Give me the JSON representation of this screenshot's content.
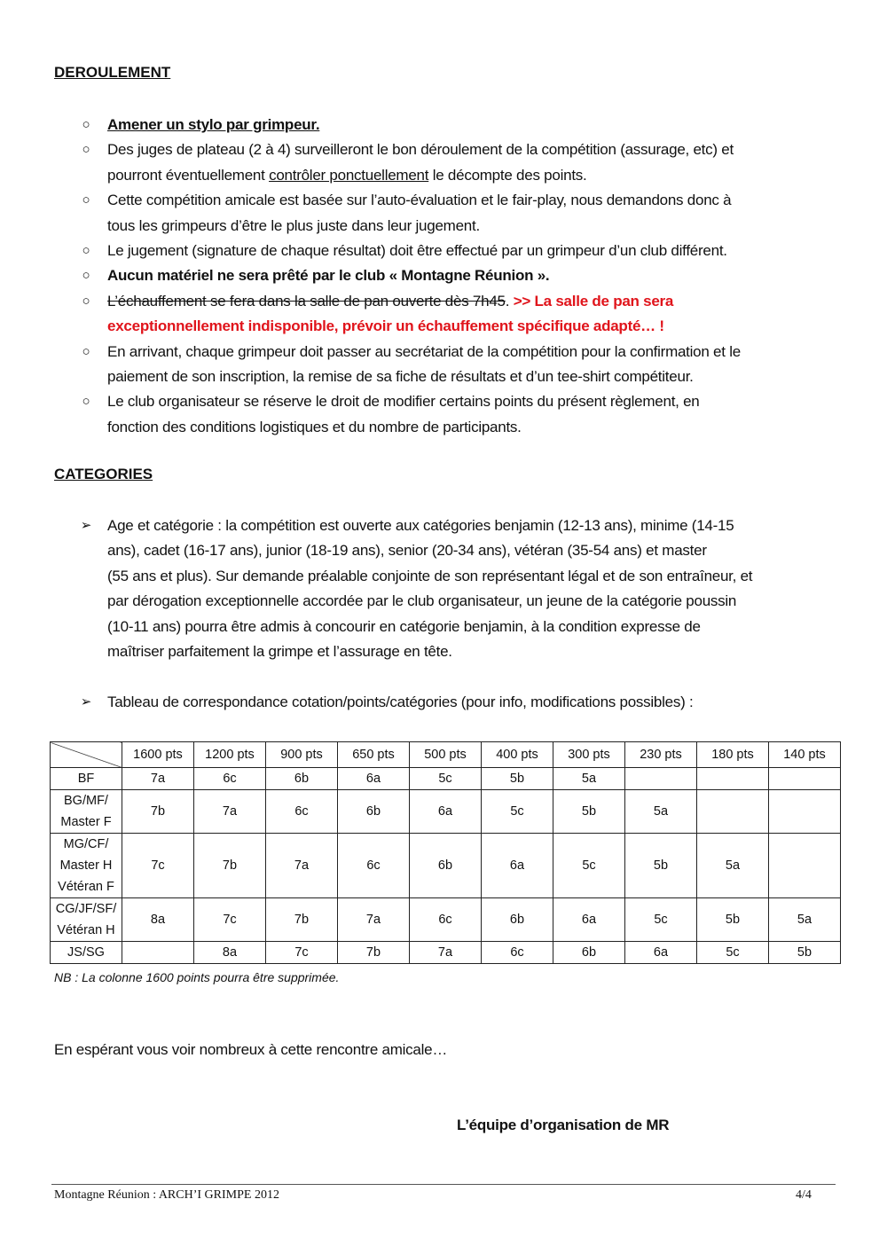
{
  "deroulement": {
    "title": "DEROULEMENT",
    "items": [
      {
        "lines": [
          [
            {
              "text": "Amener un stylo par grimpeur.",
              "fmt": "b u"
            }
          ]
        ]
      },
      {
        "lines": [
          [
            {
              "text": "Des juges de plateau (2 à 4) surveilleront le bon déroulement de la compétition (assurage, etc) et",
              "fmt": ""
            }
          ],
          [
            {
              "text": "pourront éventuellement ",
              "fmt": ""
            },
            {
              "text": "contrôler ponctuellement",
              "fmt": "u"
            },
            {
              "text": " le décompte des points.",
              "fmt": ""
            }
          ]
        ]
      },
      {
        "lines": [
          [
            {
              "text": "Cette compétition amicale est basée sur l’auto-évaluation et le fair-play, nous demandons donc à",
              "fmt": ""
            }
          ],
          [
            {
              "text": "tous les grimpeurs d’être le plus juste dans leur jugement.",
              "fmt": ""
            }
          ]
        ]
      },
      {
        "lines": [
          [
            {
              "text": "Le jugement (signature de chaque résultat) doit être effectué par un grimpeur d’un club différent.",
              "fmt": ""
            }
          ]
        ]
      },
      {
        "lines": [
          [
            {
              "text": "Aucun matériel ne sera prêté par le club « Montagne Réunion ».",
              "fmt": "b"
            }
          ]
        ]
      },
      {
        "lines": [
          [
            {
              "text": "L’échauffement se fera dans la salle de pan ouverte dès 7h45",
              "fmt": "s"
            },
            {
              "text": ". ",
              "fmt": ""
            },
            {
              "text": ">> La salle de pan sera",
              "fmt": "r"
            }
          ],
          [
            {
              "text": "exceptionnellement indisponible, prévoir un échauffement spécifique adapté… !",
              "fmt": "r"
            }
          ]
        ]
      },
      {
        "lines": [
          [
            {
              "text": "En arrivant, chaque grimpeur doit passer au secrétariat de la compétition pour la confirmation et le",
              "fmt": ""
            }
          ],
          [
            {
              "text": "paiement de son inscription, la remise de sa fiche de résultats et d’un tee-shirt compétiteur.",
              "fmt": ""
            }
          ]
        ]
      },
      {
        "lines": [
          [
            {
              "text": "Le club organisateur se réserve le droit de modifier certains points du présent règlement, en",
              "fmt": ""
            }
          ],
          [
            {
              "text": "fonction des conditions logistiques et du nombre de participants.",
              "fmt": ""
            }
          ]
        ]
      }
    ]
  },
  "categories": {
    "title": "CATEGORIES",
    "items": [
      {
        "lines": [
          [
            {
              "text": "Age et catégorie : la compétition est ouverte aux catégories benjamin (12-13 ans), minime (14-15",
              "fmt": ""
            }
          ],
          [
            {
              "text": "ans), cadet (16-17 ans), junior (18-19 ans), senior (20-34 ans), vétéran (35-54 ans) et master",
              "fmt": ""
            }
          ],
          [
            {
              "text": "(55 ans et plus). Sur demande préalable conjointe de son représentant légal et de son entraîneur, et",
              "fmt": ""
            }
          ],
          [
            {
              "text": "par dérogation exceptionnelle accordée par le club organisateur, un jeune de la catégorie poussin",
              "fmt": ""
            }
          ],
          [
            {
              "text": "(10-11 ans) pourra être admis à concourir en catégorie benjamin, à la condition expresse de",
              "fmt": ""
            }
          ],
          [
            {
              "text": "maîtriser parfaitement la grimpe et l’assurage en tête.",
              "fmt": ""
            }
          ]
        ]
      },
      {
        "lines": [
          [
            {
              "text": "Tableau de correspondance cotation/points/catégories (pour info, modifications possibles) :",
              "fmt": ""
            }
          ]
        ]
      }
    ]
  },
  "table": {
    "headers": [
      "1600 pts",
      "1200 pts",
      "900 pts",
      "650 pts",
      "500 pts",
      "400 pts",
      "300 pts",
      "230 pts",
      "180 pts",
      "140 pts"
    ],
    "rows": [
      {
        "label": [
          "BF"
        ],
        "cells": [
          "7a",
          "6c",
          "6b",
          "6a",
          "5c",
          "5b",
          "5a",
          "",
          "",
          ""
        ]
      },
      {
        "label": [
          "BG/MF/",
          "Master F"
        ],
        "cells": [
          "7b",
          "7a",
          "6c",
          "6b",
          "6a",
          "5c",
          "5b",
          "5a",
          "",
          ""
        ]
      },
      {
        "label": [
          "MG/CF/",
          "Master H",
          "Vétéran F"
        ],
        "cells": [
          "7c",
          "7b",
          "7a",
          "6c",
          "6b",
          "6a",
          "5c",
          "5b",
          "5a",
          ""
        ]
      },
      {
        "label": [
          "CG/JF/SF/",
          "Vétéran H"
        ],
        "cells": [
          "8a",
          "7c",
          "7b",
          "7a",
          "6c",
          "6b",
          "6a",
          "5c",
          "5b",
          "5a"
        ]
      },
      {
        "label": [
          "JS/SG"
        ],
        "cells": [
          "",
          "8a",
          "7c",
          "7b",
          "7a",
          "6c",
          "6b",
          "6a",
          "5c",
          "5b"
        ]
      }
    ],
    "note": "NB : La colonne 1600 points pourra être supprimée."
  },
  "closing": "En espérant vous voir nombreux à cette rencontre amicale…",
  "signature": "L’équipe d’organisation de MR",
  "footer": {
    "left": "Montagne Réunion : ARCH’I GRIMPE 2012",
    "right": "4/4"
  },
  "colors": {
    "highlight": "#e0141b"
  },
  "icons": {
    "deroulement_bullet": "circle-bullet-icon",
    "categories_bullet": "arrow-bullet-icon"
  }
}
